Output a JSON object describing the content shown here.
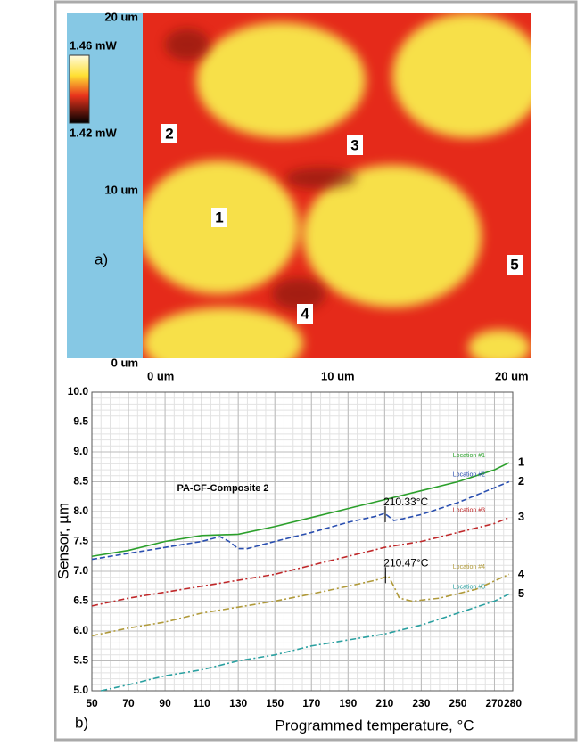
{
  "panel_a": {
    "label": "a)",
    "y_labels": [
      "20 um",
      "10 um",
      "0 um"
    ],
    "x_labels": [
      "0 um",
      "10 um",
      "20 um"
    ],
    "colorbar": {
      "max": "1.46 mW",
      "min": "1.42 mW"
    },
    "locations": [
      "1",
      "2",
      "3",
      "4",
      "5"
    ]
  },
  "chart_data": {
    "type": "line",
    "title": "PA-GF-Composite 2",
    "panel_label": "b)",
    "x_label": "Programmed temperature, °C",
    "y_label": "Sensor, µm",
    "xlim": [
      50,
      280
    ],
    "xticks": [
      50,
      70,
      90,
      110,
      130,
      150,
      170,
      190,
      210,
      230,
      250,
      270,
      280
    ],
    "ylim": [
      5,
      10
    ],
    "yticks": [
      {
        "value": 5,
        "label": "5.0"
      },
      5.5,
      {
        "value": 6,
        "label": "6.0"
      },
      6.5,
      {
        "value": 7,
        "label": "7.0"
      },
      7.5,
      {
        "value": 8,
        "label": "8.0"
      },
      8.5,
      {
        "value": 9,
        "label": "9.0"
      },
      9.5,
      {
        "value": 10,
        "label": "10.0"
      }
    ],
    "grid": true,
    "series": [
      {
        "name": "Location #1",
        "label": "1",
        "color": "#2ca02c",
        "style": "solid",
        "x": [
          50,
          70,
          90,
          110,
          130,
          150,
          170,
          190,
          210,
          230,
          250,
          270,
          278
        ],
        "values": [
          7.25,
          7.35,
          7.5,
          7.6,
          7.62,
          7.75,
          7.9,
          8.05,
          8.2,
          8.35,
          8.5,
          8.7,
          8.82
        ]
      },
      {
        "name": "Location #2",
        "label": "2",
        "color": "#2a4fb0",
        "style": "dashed",
        "x": [
          50,
          70,
          90,
          110,
          120,
          125,
          130,
          135,
          150,
          170,
          190,
          205,
          210,
          215,
          220,
          230,
          250,
          270,
          278
        ],
        "values": [
          7.2,
          7.3,
          7.4,
          7.5,
          7.58,
          7.5,
          7.38,
          7.38,
          7.5,
          7.65,
          7.82,
          7.92,
          7.97,
          7.85,
          7.88,
          7.95,
          8.15,
          8.4,
          8.5
        ]
      },
      {
        "name": "Location #3",
        "label": "3",
        "color": "#c0282a",
        "style": "dashdot",
        "x": [
          50,
          70,
          90,
          110,
          130,
          150,
          170,
          190,
          210,
          230,
          250,
          270,
          278
        ],
        "values": [
          6.42,
          6.55,
          6.65,
          6.75,
          6.85,
          6.95,
          7.1,
          7.25,
          7.4,
          7.5,
          7.65,
          7.8,
          7.9
        ]
      },
      {
        "name": "Location #4",
        "label": "4",
        "color": "#b09a3a",
        "style": "dashdot",
        "x": [
          50,
          70,
          90,
          110,
          130,
          150,
          170,
          190,
          205,
          212,
          215,
          218,
          225,
          240,
          260,
          278
        ],
        "values": [
          5.92,
          6.05,
          6.15,
          6.3,
          6.4,
          6.5,
          6.62,
          6.75,
          6.85,
          6.92,
          6.75,
          6.55,
          6.5,
          6.55,
          6.7,
          6.95
        ]
      },
      {
        "name": "Location #5",
        "label": "5",
        "color": "#2aa0a0",
        "style": "dashdot",
        "x": [
          55,
          70,
          90,
          110,
          130,
          150,
          170,
          190,
          210,
          230,
          250,
          270,
          278
        ],
        "values": [
          5.0,
          5.1,
          5.25,
          5.35,
          5.5,
          5.6,
          5.75,
          5.85,
          5.95,
          6.1,
          6.3,
          6.5,
          6.62
        ]
      }
    ],
    "annotations": [
      {
        "value": 210.33,
        "label": "210.33°C"
      },
      {
        "value": 210.47,
        "label": "210.47°C"
      }
    ]
  }
}
